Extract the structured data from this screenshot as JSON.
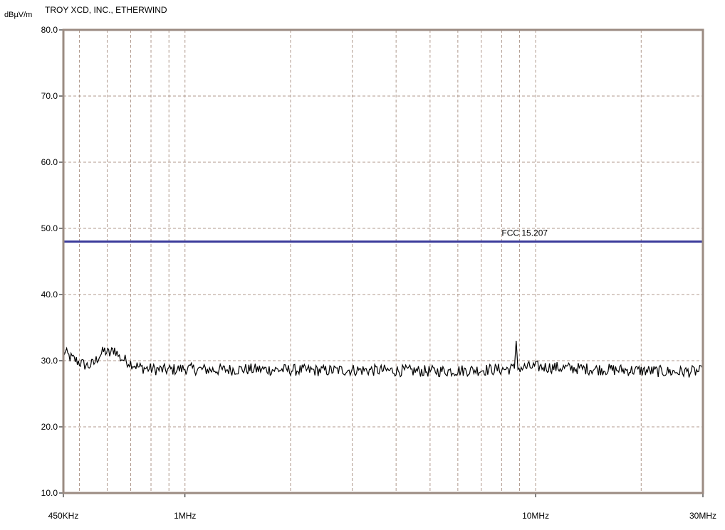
{
  "chart_data": {
    "type": "line",
    "title": "TROY XCD, INC., ETHERWIND",
    "ylabel": "dBµV/m",
    "xlabel": "",
    "x_scale": "log",
    "xlim_hz": [
      450000,
      30000000
    ],
    "ylim": [
      10,
      80
    ],
    "grid": true,
    "y_ticks": [
      {
        "value": 10,
        "label": "10.0"
      },
      {
        "value": 20,
        "label": "20.0"
      },
      {
        "value": 30,
        "label": "30.0"
      },
      {
        "value": 40,
        "label": "40.0"
      },
      {
        "value": 50,
        "label": "50.0"
      },
      {
        "value": 60,
        "label": "60.0"
      },
      {
        "value": 70,
        "label": "70.0"
      },
      {
        "value": 80,
        "label": "80.0"
      }
    ],
    "x_ticks": [
      {
        "value": 450000,
        "label": "450KHz"
      },
      {
        "value": 1000000,
        "label": "1MHz"
      },
      {
        "value": 10000000,
        "label": "10MHz"
      },
      {
        "value": 30000000,
        "label": "30MHz"
      }
    ],
    "x_grid_hz": [
      500000,
      600000,
      700000,
      800000,
      900000,
      1000000,
      2000000,
      3000000,
      4000000,
      5000000,
      6000000,
      7000000,
      8000000,
      9000000,
      10000000,
      20000000,
      30000000
    ],
    "limit_line": {
      "name": "FCC 15.207",
      "value": 48,
      "color": "#3a3a9a"
    },
    "series": [
      {
        "color": "#000000",
        "points": [
          [
            450000,
            31.5
          ],
          [
            470000,
            30.5
          ],
          [
            490000,
            30.0
          ],
          [
            510000,
            29.5
          ],
          [
            530000,
            29.2
          ],
          [
            550000,
            29.6
          ],
          [
            570000,
            30.8
          ],
          [
            590000,
            31.5
          ],
          [
            610000,
            31.0
          ],
          [
            630000,
            31.8
          ],
          [
            650000,
            30.5
          ],
          [
            680000,
            30.0
          ],
          [
            710000,
            29.5
          ],
          [
            740000,
            29.0
          ],
          [
            780000,
            28.8
          ],
          [
            820000,
            28.7
          ],
          [
            880000,
            28.6
          ],
          [
            950000,
            28.7
          ],
          [
            1000000,
            28.8
          ],
          [
            1200000,
            28.6
          ],
          [
            1500000,
            28.7
          ],
          [
            2000000,
            28.6
          ],
          [
            2500000,
            28.5
          ],
          [
            3000000,
            28.6
          ],
          [
            4000000,
            28.5
          ],
          [
            5000000,
            28.4
          ],
          [
            6000000,
            28.5
          ],
          [
            7000000,
            28.6
          ],
          [
            8000000,
            28.7
          ],
          [
            8700000,
            28.8
          ],
          [
            8800000,
            33.0
          ],
          [
            8900000,
            28.9
          ],
          [
            9500000,
            29.0
          ],
          [
            10000000,
            29.1
          ],
          [
            12000000,
            28.9
          ],
          [
            15000000,
            28.7
          ],
          [
            20000000,
            28.5
          ],
          [
            25000000,
            28.3
          ],
          [
            30000000,
            28.4
          ]
        ]
      }
    ]
  }
}
